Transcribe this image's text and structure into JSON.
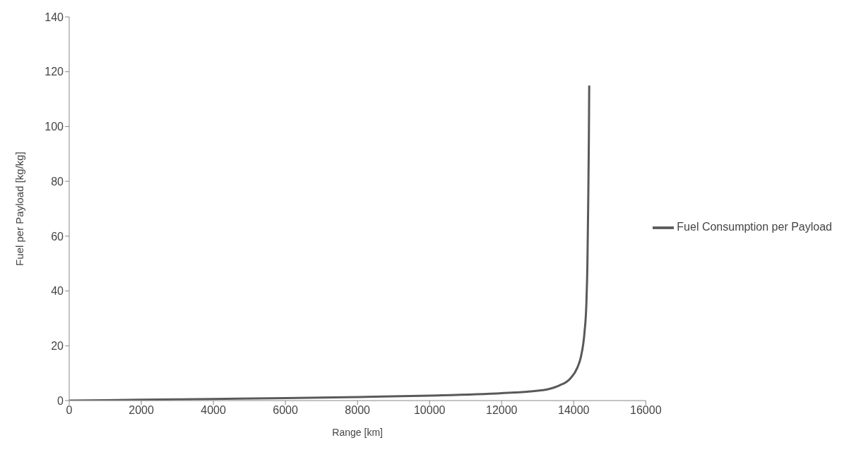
{
  "chart_data": {
    "type": "line",
    "xlabel": "Range [km]",
    "ylabel": "Fuel per Payload [kg/kg]",
    "xlim": [
      0,
      16000
    ],
    "xticks": [
      0,
      2000,
      4000,
      6000,
      8000,
      10000,
      12000,
      14000,
      16000
    ],
    "ylim": [
      0,
      140
    ],
    "yticks": [
      0,
      20,
      40,
      60,
      80,
      100,
      120,
      140
    ],
    "legend": "right",
    "marker": "none",
    "line_style": "solid",
    "series": [
      {
        "name": "Fuel Consumption per Payload",
        "color": "#595959",
        "x": [
          0,
          2000,
          4000,
          6000,
          8000,
          10000,
          12000,
          13000,
          13300,
          13600,
          13900,
          14100,
          14200,
          14300,
          14350,
          14380,
          14400,
          14420,
          14430
        ],
        "values": [
          0,
          0.3,
          0.6,
          0.9,
          1.3,
          1.8,
          2.7,
          3.6,
          4.2,
          5.5,
          8,
          12,
          16,
          25,
          35,
          50,
          70,
          95,
          115
        ]
      }
    ]
  }
}
